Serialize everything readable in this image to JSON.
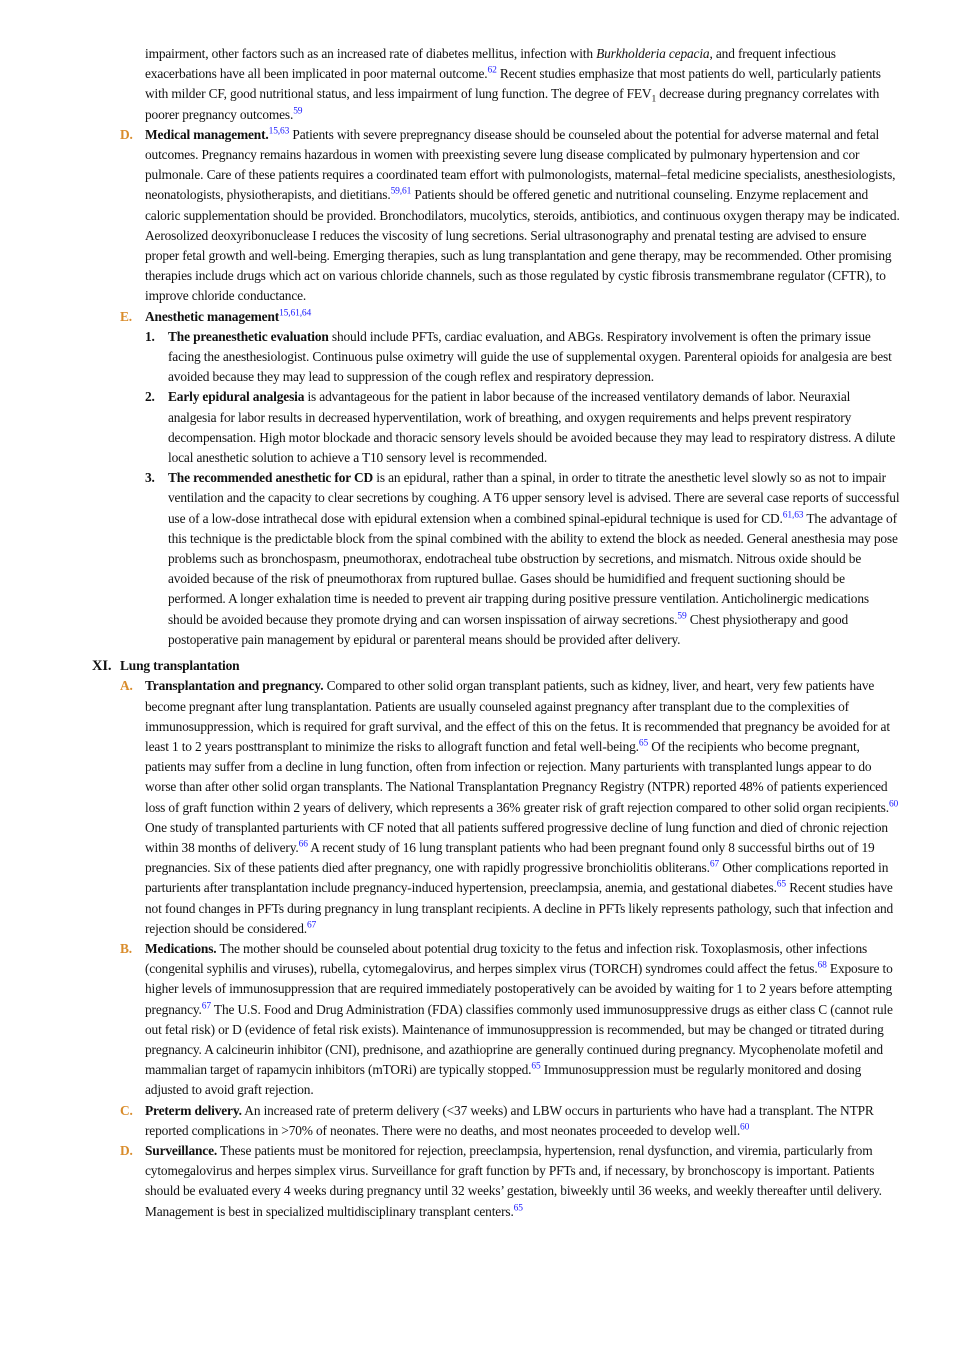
{
  "intro": {
    "parts": [
      {
        "text": "impairment, other factors such as an increased rate of diabetes mellitus, infection with "
      },
      {
        "italic": "Burkholderia cepacia"
      },
      {
        "text": ", and frequent infectious exacerbations have all been implicated in poor maternal outcome."
      },
      {
        "ref": "62"
      },
      {
        "text": " Recent studies emphasize that most patients do well, particularly patients with milder CF, good nutritional status, and less impairment of lung function. The degree of FEV"
      },
      {
        "sub": "1"
      },
      {
        "text": " decrease during pregnancy correlates with poorer pregnancy outcomes."
      },
      {
        "ref": "59"
      }
    ]
  },
  "items": [
    {
      "marker": "D.",
      "parts": [
        {
          "bold": "Medical management."
        },
        {
          "ref": "15,63"
        },
        {
          "text": " Patients with severe prepregnancy disease should be counseled about the potential for adverse maternal and fetal outcomes. Pregnancy remains hazardous in women with preexisting severe lung disease complicated by pulmonary hypertension and cor pulmonale. Care of these patients requires a coordinated team effort with pulmonologists, maternal–fetal medicine specialists, anesthesiologists, neonatologists, physiotherapists, and dietitians."
        },
        {
          "ref": "59,61"
        },
        {
          "text": " Patients should be offered genetic and nutritional counseling. Enzyme replacement and caloric supplementation should be provided. Bronchodilators, mucolytics, steroids, antibiotics, and continuous oxygen therapy may be indicated. Aerosolized deoxyribonuclease I reduces the viscosity of lung secretions. Serial ultrasonography and prenatal testing are advised to ensure proper fetal growth and well-being. Emerging therapies, such as lung transplantation and gene therapy, may be recommended. Other promising therapies include drugs which act on various chloride channels, such as those regulated by cystic fibrosis transmembrane regulator (CFTR), to improve chloride conductance."
        }
      ]
    },
    {
      "marker": "E.",
      "parts": [
        {
          "bold": "Anesthetic management"
        },
        {
          "ref": "15,61,64"
        }
      ],
      "subitems": [
        {
          "marker": "1.",
          "parts": [
            {
              "bold": "The preanesthetic evaluation"
            },
            {
              "text": " should include PFTs, cardiac evaluation, and ABGs. Respiratory involvement is often the primary issue facing the anesthesiologist. Continuous pulse oximetry will guide the use of supplemental oxygen. Parenteral opioids for analgesia are best avoided because they may lead to suppression of the cough reflex and respiratory depression."
            }
          ]
        },
        {
          "marker": "2.",
          "parts": [
            {
              "bold": "Early epidural analgesia"
            },
            {
              "text": " is advantageous for the patient in labor because of the increased ventilatory demands of labor. Neuraxial analgesia for labor results in decreased hyperventilation, work of breathing, and oxygen requirements and helps prevent respiratory decompensation. High motor blockade and thoracic sensory levels should be avoided because they may lead to respiratory distress. A dilute local anesthetic solution to achieve a T10 sensory level is recommended."
            }
          ]
        },
        {
          "marker": "3.",
          "parts": [
            {
              "bold": "The recommended anesthetic for CD"
            },
            {
              "text": " is an epidural, rather than a spinal, in order to titrate the anesthetic level slowly so as not to impair ventilation and the capacity to clear secretions by coughing. A T6 upper sensory level is advised. There are several case reports of successful use of a low-dose intrathecal dose with epidural extension when a combined spinal-epidural technique is used for CD."
            },
            {
              "ref": "61,63"
            },
            {
              "text": " The advantage of this technique is the predictable block from the spinal combined with the ability to extend the block as needed. General anesthesia may pose problems such as bronchospasm, pneumothorax, endotracheal tube obstruction by secretions, and mismatch. Nitrous oxide should be avoided because of the risk of pneumothorax from ruptured bullae. Gases should be humidified and frequent suctioning should be performed. A longer exhalation time is needed to prevent air trapping during positive pressure ventilation. Anticholinergic medications should be avoided because they promote drying and can worsen inspissation of airway secretions."
            },
            {
              "ref": "59"
            },
            {
              "text": " Chest physiotherapy and good postoperative pain management by epidural or parenteral means should be provided after delivery."
            }
          ]
        }
      ]
    }
  ],
  "section": {
    "numeral": "XI.",
    "title": "Lung transplantation",
    "items": [
      {
        "marker": "A.",
        "parts": [
          {
            "bold": "Transplantation and pregnancy."
          },
          {
            "text": " Compared to other solid organ transplant patients, such as kidney, liver, and heart, very few patients have become pregnant after lung transplantation. Patients are usually counseled against pregnancy after transplant due to the complexities of immunosuppression, which is required for graft survival, and the effect of this on the fetus. It is recommended that pregnancy be avoided for at least 1 to 2 years posttransplant to minimize the risks to allograft function and fetal well-being."
          },
          {
            "ref": "65"
          },
          {
            "text": " Of the recipients who become pregnant, patients may suffer from a decline in lung function, often from infection or rejection. Many parturients with transplanted lungs appear to do worse than after other solid organ transplants. The National Transplantation Pregnancy Registry (NTPR) reported 48% of patients experienced loss of graft function within 2 years of delivery, which represents a 36% greater risk of graft rejection compared to other solid organ recipients."
          },
          {
            "ref": "60"
          },
          {
            "text": " One study of transplanted parturients with CF noted that all patients suffered progressive decline of lung function and died of chronic rejection within 38 months of delivery."
          },
          {
            "ref": "66"
          },
          {
            "text": " A recent study of 16 lung transplant patients who had been pregnant found only 8 successful births out of 19 pregnancies. Six of these patients died after pregnancy, one with rapidly progressive bronchiolitis obliterans."
          },
          {
            "ref": "67"
          },
          {
            "text": " Other complications reported in parturients after transplantation include pregnancy-induced hypertension, preeclampsia, anemia, and gestational diabetes."
          },
          {
            "ref": "65"
          },
          {
            "text": " Recent studies have not found changes in PFTs during pregnancy in lung transplant recipients. A decline in PFTs likely represents pathology, such that infection and rejection should be considered."
          },
          {
            "ref": "67"
          }
        ]
      },
      {
        "marker": "B.",
        "parts": [
          {
            "bold": "Medications."
          },
          {
            "text": " The mother should be counseled about potential drug toxicity to the fetus and infection risk. Toxoplasmosis, other infections (congenital syphilis and viruses), rubella, cytomegalovirus, and herpes simplex virus (TORCH) syndromes could affect the fetus."
          },
          {
            "ref": "68"
          },
          {
            "text": " Exposure to higher levels of immunosuppression that are required immediately postoperatively can be avoided by waiting for 1 to 2 years before attempting pregnancy."
          },
          {
            "ref": "67"
          },
          {
            "text": " The U.S. Food and Drug Administration (FDA) classifies commonly used immunosuppressive drugs as either class C (cannot rule out fetal risk) or D (evidence of fetal risk exists). Maintenance of immunosuppression is recommended, but may be changed or titrated during pregnancy. A calcineurin inhibitor (CNI), prednisone, and azathioprine are generally continued during pregnancy. Mycophenolate mofetil and mammalian target of rapamycin inhibitors (mTORi) are typically stopped."
          },
          {
            "ref": "65"
          },
          {
            "text": " Immunosuppression must be regularly monitored and dosing adjusted to avoid graft rejection."
          }
        ]
      },
      {
        "marker": "C.",
        "parts": [
          {
            "bold": "Preterm delivery."
          },
          {
            "text": " An increased rate of preterm delivery (<37 weeks) and LBW occurs in parturients who have had a transplant. The NTPR reported complications in >70% of neonates. There were no deaths, and most neonates proceeded to develop well."
          },
          {
            "ref": "60"
          }
        ]
      },
      {
        "marker": "D.",
        "parts": [
          {
            "bold": "Surveillance."
          },
          {
            "text": " These patients must be monitored for rejection, preeclampsia, hypertension, renal dysfunction, and viremia, particularly from cytomegalovirus and herpes simplex virus. Surveillance for graft function by PFTs and, if necessary, by bronchoscopy is important. Patients should be evaluated every 4 weeks during pregnancy until 32 weeks’ gestation, biweekly until 36 weeks, and weekly thereafter until delivery. Management is best in specialized multidisciplinary transplant centers."
          },
          {
            "ref": "65"
          }
        ]
      }
    ]
  }
}
